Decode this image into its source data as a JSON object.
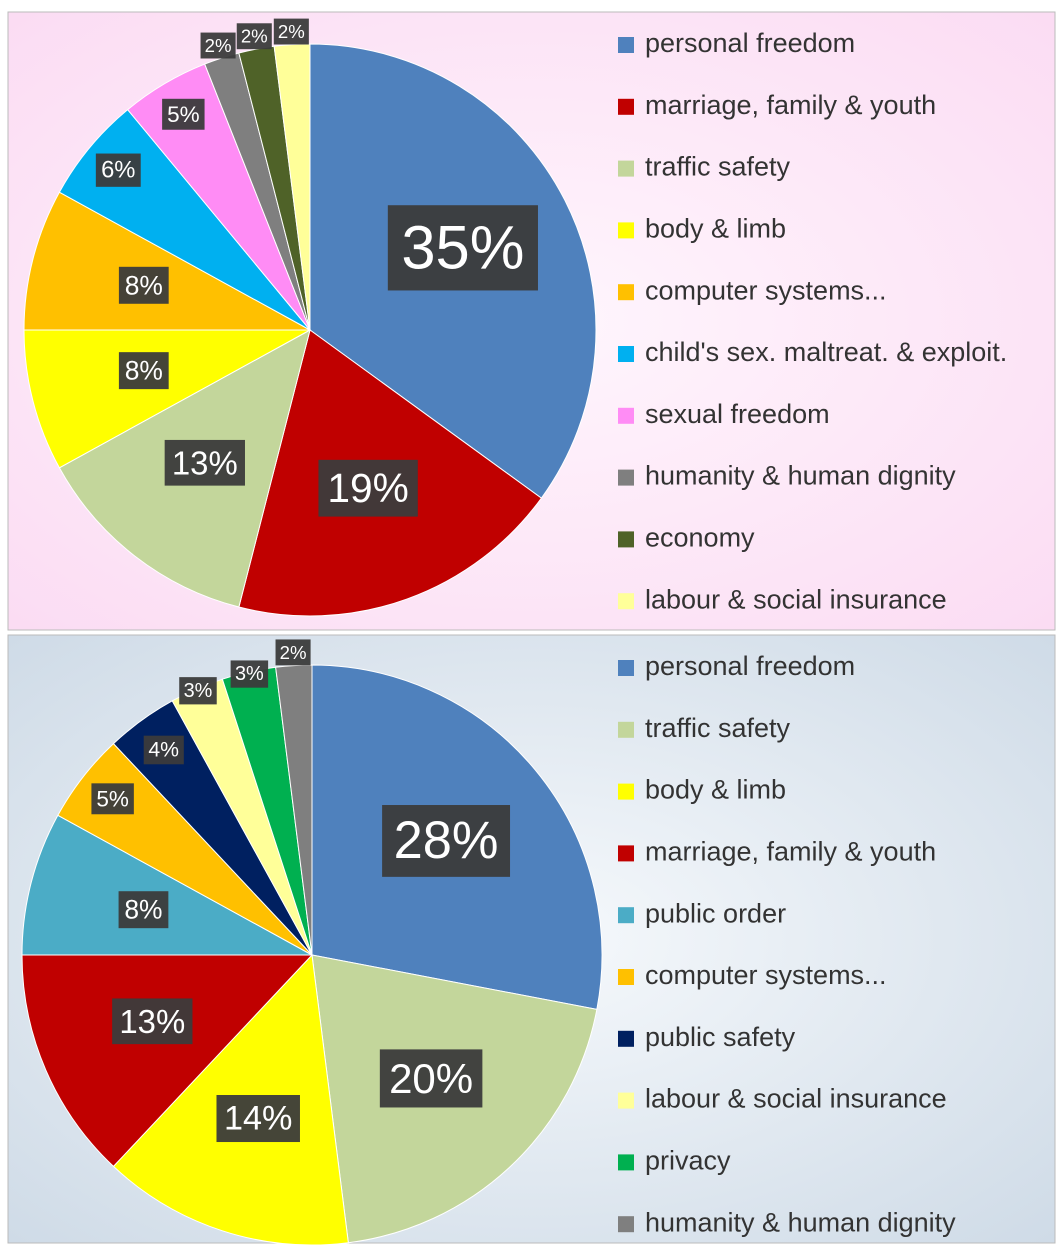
{
  "chart_data": [
    {
      "type": "pie",
      "categories": [
        "personal freedom",
        "marriage, family & youth",
        "traffic safety",
        "body & limb",
        "computer systems...",
        "child's sex. maltreat. & exploit.",
        "sexual freedom",
        "humanity & human dignity",
        "economy",
        "labour & social insurance"
      ],
      "values": [
        35,
        19,
        13,
        8,
        8,
        6,
        5,
        2,
        2,
        2
      ],
      "value_labels": [
        "35%",
        "19%",
        "13%",
        "8%",
        "8%",
        "6%",
        "5%",
        "2%",
        "2%",
        "2%"
      ],
      "colors": [
        "#4f81bd",
        "#c00000",
        "#c3d69b",
        "#ffff00",
        "#ffc000",
        "#00b0f0",
        "#ff8cf5",
        "#7f7f7f",
        "#4f6228",
        "#ffff99"
      ]
    },
    {
      "type": "pie",
      "categories": [
        "personal freedom",
        "traffic safety",
        "body & limb",
        "marriage, family & youth",
        "public order",
        "computer systems...",
        "public safety",
        "labour & social insurance",
        "privacy",
        "humanity & human dignity"
      ],
      "values": [
        28,
        20,
        14,
        13,
        8,
        5,
        4,
        3,
        3,
        2
      ],
      "value_labels": [
        "28%",
        "20%",
        "14%",
        "13%",
        "8%",
        "5%",
        "4%",
        "3%",
        "3%",
        "2%"
      ],
      "colors": [
        "#4f81bd",
        "#c3d69b",
        "#ffff00",
        "#c00000",
        "#4bacc6",
        "#ffc000",
        "#002060",
        "#ffff99",
        "#00b050",
        "#7f7f7f"
      ]
    }
  ]
}
